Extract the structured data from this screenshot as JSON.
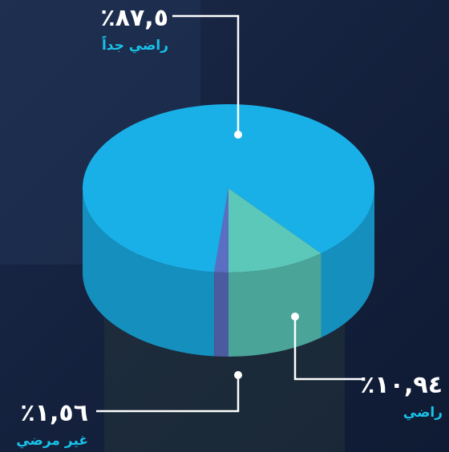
{
  "chart_data": {
    "type": "pie",
    "categories": [
      "راضي جداً",
      "راضي",
      "غير مرضي"
    ],
    "values": [
      87.5,
      10.94,
      1.56
    ],
    "value_labels": [
      "٪٨٧,٥",
      "٪١٠,٩٤",
      "٪١,٥٦"
    ],
    "colors": [
      "#19b0e8",
      "#5cc8b9",
      "#5b6fc2"
    ]
  }
}
